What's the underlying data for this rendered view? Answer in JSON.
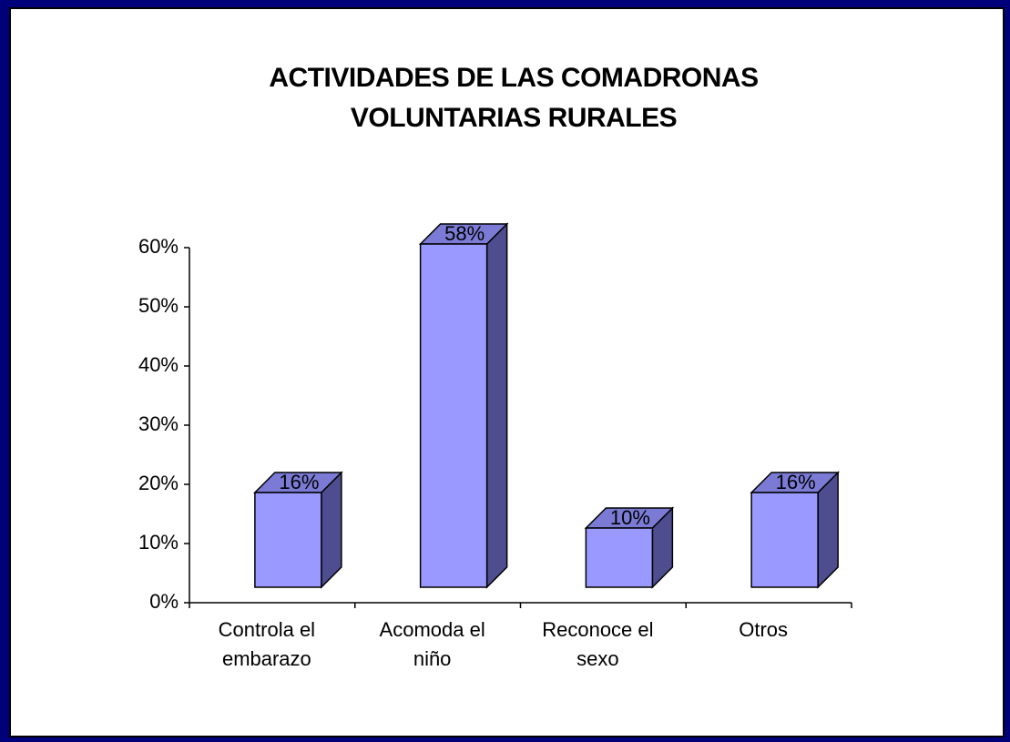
{
  "chart_data": {
    "type": "bar",
    "title": "ACTIVIDADES DE LAS COMADRONAS VOLUNTARIAS RURALES",
    "categories": [
      "Controla el embarazo",
      "Acomoda el niño",
      "Reconoce el sexo",
      "Otros"
    ],
    "values": [
      16,
      58,
      10,
      16
    ],
    "value_labels": [
      "16%",
      "58%",
      "10%",
      "16%"
    ],
    "color": "#9999ff",
    "ylim": [
      0,
      60
    ],
    "yticks": [
      {
        "value": 0,
        "label": "0%"
      },
      {
        "value": 10,
        "label": "10%"
      },
      {
        "value": 20,
        "label": "20%"
      },
      {
        "value": 30,
        "label": "30%"
      },
      {
        "value": 40,
        "label": "40%"
      },
      {
        "value": 50,
        "label": "50%"
      },
      {
        "value": 60,
        "label": "60%"
      }
    ]
  }
}
